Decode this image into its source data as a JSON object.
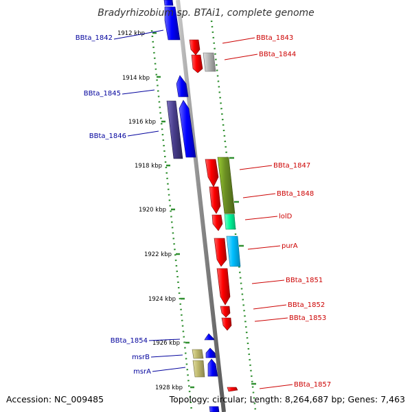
{
  "title": "Bradyrhizobium sp. BTAi1, complete genome",
  "footer": {
    "accession": "Accession: NC_009485",
    "stats": "Topology: circular; Length: 8,264,687 bp; Genes: 7,463"
  },
  "colors": {
    "backbone": "#8a8a8a",
    "dotted_guides": "#2f8f2f",
    "forward_label": "#cc0000",
    "reverse_label": "#00009c"
  },
  "ticks": [
    {
      "label": "1912 kbp"
    },
    {
      "label": "1914 kbp"
    },
    {
      "label": "1916 kbp"
    },
    {
      "label": "1918 kbp"
    },
    {
      "label": "1920 kbp"
    },
    {
      "label": "1922 kbp"
    },
    {
      "label": "1924 kbp"
    },
    {
      "label": "1926 kbp"
    },
    {
      "label": "1928 kbp"
    }
  ],
  "genes_forward": [
    {
      "name": "BBta_1843",
      "color": "#ff0000"
    },
    {
      "name": "BBta_1844",
      "color": "#b4b4b4"
    },
    {
      "name": "BBta_1847",
      "color": "#6b8e23"
    },
    {
      "name": "BBta_1848",
      "color": "#ff0000"
    },
    {
      "name": "lolD",
      "color": "#00fa9a"
    },
    {
      "name": "purA",
      "color": "#00bfff"
    },
    {
      "name": "BBta_1851",
      "color": "#ff0000"
    },
    {
      "name": "BBta_1852",
      "color": "#ff0000"
    },
    {
      "name": "BBta_1853",
      "color": "#ff0000"
    },
    {
      "name": "BBta_1857",
      "color": "#ff0000"
    }
  ],
  "genes_reverse": [
    {
      "name": "BBta_1842",
      "color": "#0000ff"
    },
    {
      "name": "BBta_1845",
      "color": "#0000ff"
    },
    {
      "name": "BBta_1846",
      "color": "#483d8b"
    },
    {
      "name": "BBta_1854",
      "color": "#0000ff"
    },
    {
      "name": "msrB",
      "color": "#bdb76b"
    },
    {
      "name": "msrA",
      "color": "#bdb76b"
    }
  ]
}
